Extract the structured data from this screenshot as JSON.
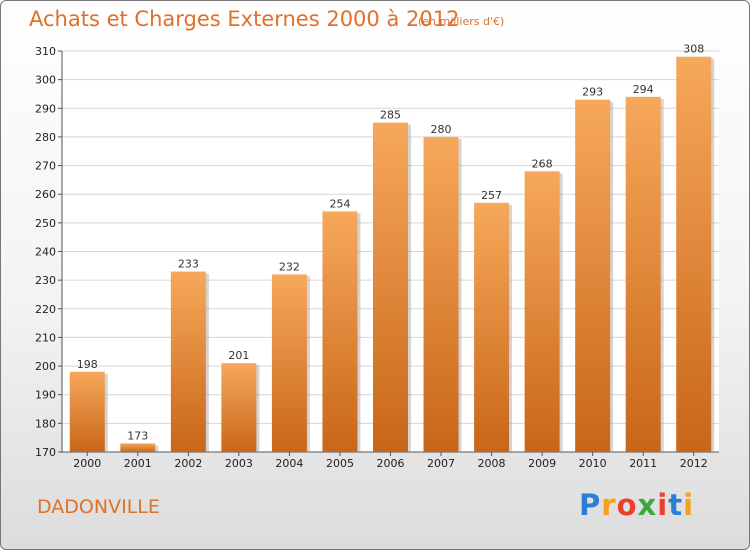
{
  "chart_data": {
    "type": "bar",
    "title": "Achats et Charges Externes 2000 à 2012",
    "subtitle": "(en milliers d'€)",
    "categories": [
      "2000",
      "2001",
      "2002",
      "2003",
      "2004",
      "2005",
      "2006",
      "2007",
      "2008",
      "2009",
      "2010",
      "2011",
      "2012"
    ],
    "values": [
      198,
      173,
      233,
      201,
      232,
      254,
      285,
      280,
      257,
      268,
      293,
      294,
      308
    ],
    "ylim": [
      170,
      310
    ],
    "yticks": [
      170,
      180,
      190,
      200,
      210,
      220,
      230,
      240,
      250,
      260,
      270,
      280,
      290,
      300,
      310
    ],
    "grid": true,
    "xlabel": "",
    "ylabel": ""
  },
  "location": "DADONVILLE",
  "logo": {
    "text": "Proxiti",
    "letters": [
      "P",
      "r",
      "o",
      "x",
      "i",
      "t",
      "i"
    ],
    "colors": [
      "#2a7fd4",
      "#f2a21b",
      "#e8402a",
      "#3aa83a",
      "#e8402a",
      "#2a7fd4",
      "#f2a21b"
    ]
  },
  "colors": {
    "bar_top": "#f7a85a",
    "bar_bottom": "#c8661a",
    "bar_shadow": "#a0a0a0",
    "grid": "#d6d6d6",
    "accent": "#e0702a"
  }
}
